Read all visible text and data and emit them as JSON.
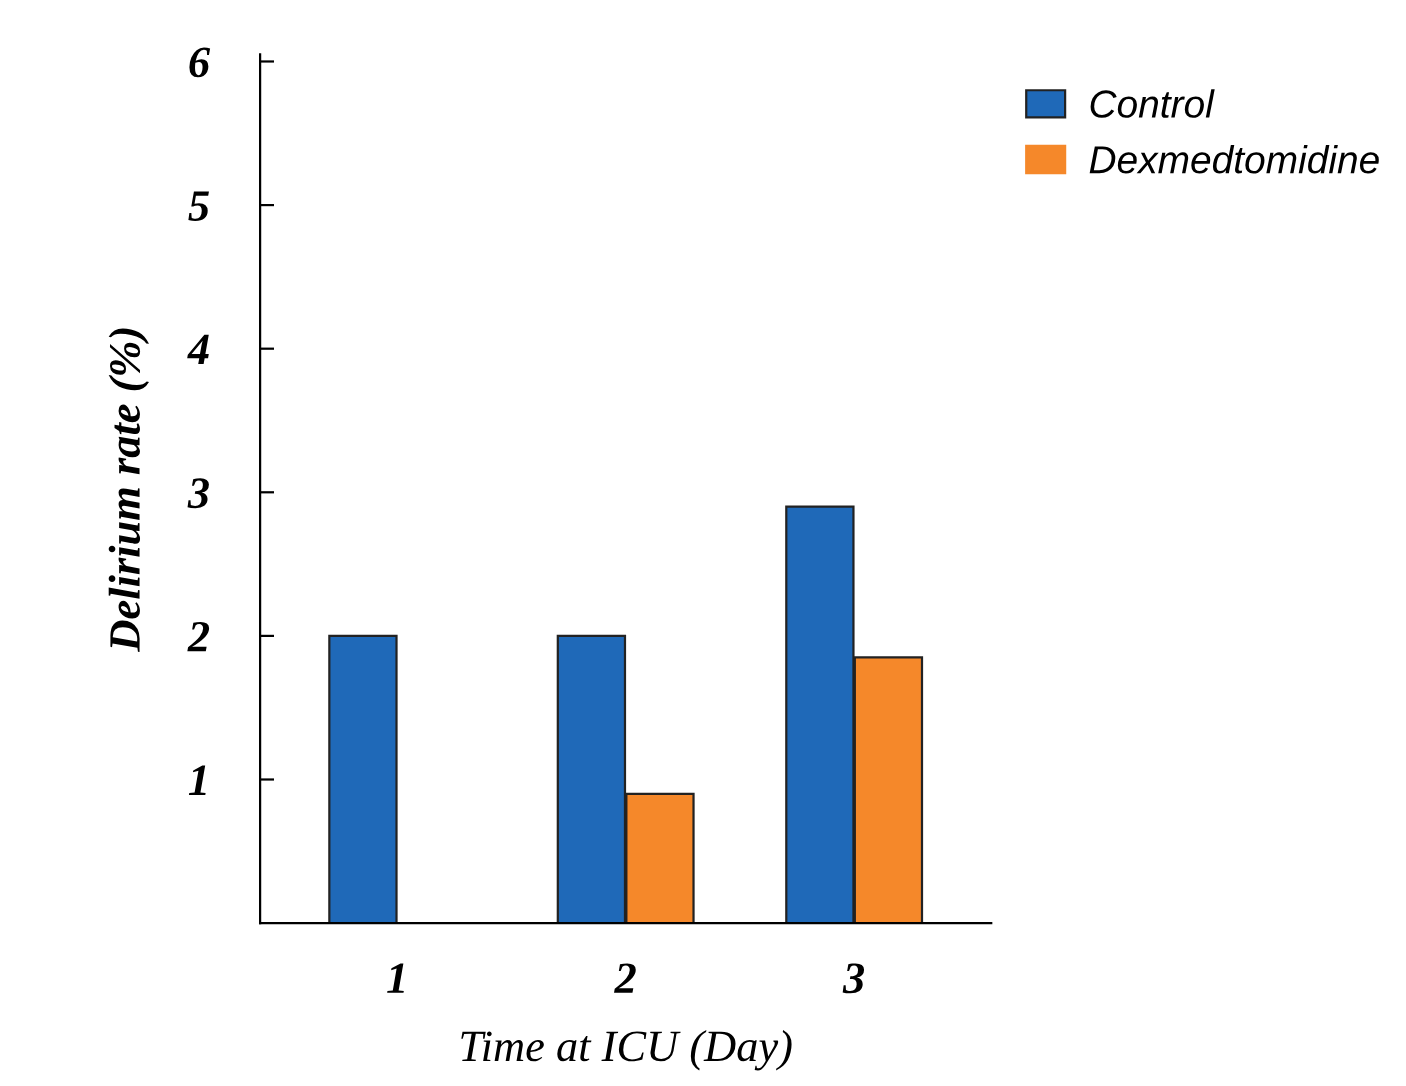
{
  "chart_data": {
    "type": "bar",
    "xlabel": "Time at ICU (Day)",
    "ylabel": "Delirium rate (%)",
    "categories": [
      "1",
      "2",
      "3"
    ],
    "series": [
      {
        "name": "Control",
        "color": "#1f69b8",
        "values": [
          2,
          2,
          2.9
        ]
      },
      {
        "name": "Dexmedtomidine",
        "color": "#f5882a",
        "values": [
          0,
          0.9,
          1.85
        ]
      }
    ],
    "ylim": [
      0,
      6.05
    ],
    "yticks": [
      1,
      2,
      3,
      4,
      5,
      6
    ],
    "grid": false,
    "legend": "top right"
  }
}
